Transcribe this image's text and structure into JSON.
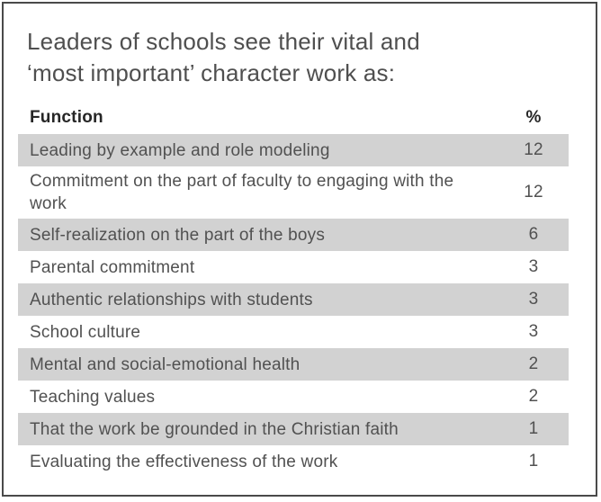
{
  "title": {
    "line1": "Leaders of schools see their vital and",
    "line2": "‘most important’ character work as:"
  },
  "colors": {
    "frame_border": "#4a4a4a",
    "row_shade": "#d2d2d2",
    "title_text": "#4f4f4f",
    "header_text": "#262626",
    "row_text": "#515151"
  },
  "chart_data": {
    "type": "table",
    "title": "Leaders of schools see their vital and ‘most important’ character work as:",
    "columns": [
      "Function",
      "%"
    ],
    "rows": [
      {
        "function": "Leading by example and role modeling",
        "value": 12
      },
      {
        "function": "Commitment on the part of faculty to engaging with the work",
        "value": 12
      },
      {
        "function": "Self-realization on the part of the boys",
        "value": 6
      },
      {
        "function": "Parental commitment",
        "value": 3
      },
      {
        "function": "Authentic relationships with students",
        "value": 3
      },
      {
        "function": "School culture",
        "value": 3
      },
      {
        "function": "Mental and social-emotional health",
        "value": 2
      },
      {
        "function": "Teaching values",
        "value": 2
      },
      {
        "function": "That the work be grounded in the Christian faith",
        "value": 1
      },
      {
        "function": "Evaluating the effectiveness of the work",
        "value": 1
      }
    ]
  }
}
